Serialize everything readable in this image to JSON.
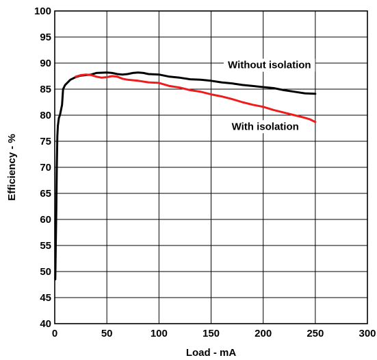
{
  "chart_data": {
    "type": "line",
    "title": "",
    "xlabel": "Load - mA",
    "ylabel": "Efficiency - %",
    "xlim": [
      0,
      300
    ],
    "ylim": [
      40,
      100
    ],
    "x_ticks": [
      0,
      50,
      100,
      150,
      200,
      250,
      300
    ],
    "y_ticks": [
      40,
      45,
      50,
      55,
      60,
      65,
      70,
      75,
      80,
      85,
      90,
      95,
      100
    ],
    "grid": true,
    "series": [
      {
        "color": "#000000",
        "points": [
          [
            0.5,
            48.5
          ],
          [
            1,
            55
          ],
          [
            1.5,
            62
          ],
          [
            2,
            70
          ],
          [
            2.5,
            76
          ],
          [
            3,
            78
          ],
          [
            4,
            79.5
          ],
          [
            5,
            80
          ],
          [
            7,
            82
          ],
          [
            8,
            85
          ],
          [
            10,
            85.8
          ],
          [
            15,
            86.8
          ],
          [
            20,
            87.3
          ],
          [
            25,
            87.6
          ],
          [
            30,
            87.7
          ],
          [
            35,
            87.8
          ],
          [
            40,
            88.1
          ],
          [
            50,
            88.2
          ],
          [
            55,
            88.1
          ],
          [
            60,
            87.9
          ],
          [
            65,
            87.8
          ],
          [
            70,
            87.9
          ],
          [
            75,
            88.1
          ],
          [
            80,
            88.2
          ],
          [
            85,
            88.1
          ],
          [
            90,
            87.9
          ],
          [
            100,
            87.8
          ],
          [
            110,
            87.4
          ],
          [
            120,
            87.2
          ],
          [
            130,
            86.9
          ],
          [
            140,
            86.8
          ],
          [
            150,
            86.6
          ],
          [
            160,
            86.3
          ],
          [
            170,
            86.1
          ],
          [
            180,
            85.8
          ],
          [
            190,
            85.6
          ],
          [
            200,
            85.4
          ],
          [
            210,
            85.2
          ],
          [
            220,
            84.8
          ],
          [
            230,
            84.5
          ],
          [
            240,
            84.2
          ],
          [
            250,
            84.1
          ]
        ]
      },
      {
        "color": "#ee1c1c",
        "points": [
          [
            20,
            87.4
          ],
          [
            25,
            87.7
          ],
          [
            30,
            87.8
          ],
          [
            35,
            87.7
          ],
          [
            40,
            87.4
          ],
          [
            45,
            87.2
          ],
          [
            50,
            87.3
          ],
          [
            55,
            87.5
          ],
          [
            60,
            87.4
          ],
          [
            65,
            87.0
          ],
          [
            70,
            86.8
          ],
          [
            80,
            86.6
          ],
          [
            90,
            86.3
          ],
          [
            100,
            86.2
          ],
          [
            110,
            85.6
          ],
          [
            120,
            85.3
          ],
          [
            130,
            84.8
          ],
          [
            140,
            84.5
          ],
          [
            150,
            84.0
          ],
          [
            160,
            83.6
          ],
          [
            170,
            83.1
          ],
          [
            180,
            82.5
          ],
          [
            190,
            82.0
          ],
          [
            200,
            81.6
          ],
          [
            210,
            81.0
          ],
          [
            220,
            80.5
          ],
          [
            230,
            80.0
          ],
          [
            240,
            79.5
          ],
          [
            245,
            79.2
          ],
          [
            250,
            78.7
          ]
        ]
      }
    ],
    "annotations": [
      {
        "text": "Without isolation",
        "x": 206,
        "y": 89
      },
      {
        "text": "With isolation",
        "x": 202,
        "y": 77.2
      }
    ]
  }
}
